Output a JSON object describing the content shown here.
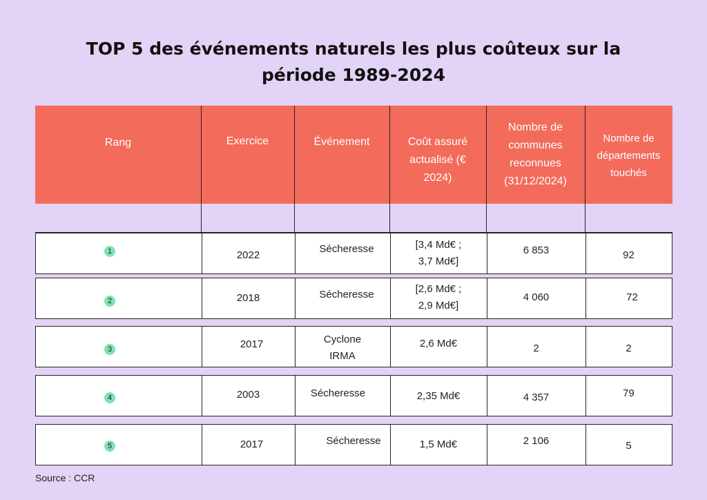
{
  "title": {
    "line1": "TOP 5 des événements naturels les plus coûteux sur la",
    "line2": "période 1989-2024"
  },
  "table": {
    "headers": {
      "rang": "Rang",
      "exercice": "Exercice",
      "evenement": "Événement",
      "cout_l1": "Coût assuré",
      "cout_l2": "actualisé (€",
      "cout_l3": "2024)",
      "communes_l1": "Nombre de",
      "communes_l2": "communes",
      "communes_l3": "reconnues",
      "communes_l4": "(31/12/2024)",
      "dept_l1": "Nombre de",
      "dept_l2": "départements",
      "dept_l3": "touchés"
    },
    "rows": [
      {
        "rang": "1",
        "exercice": "2022",
        "evenement_l1": "Sécheresse",
        "evenement_l2": "",
        "cout_l1": "[3,4 Md€ ;",
        "cout_l2": "3,7 Md€]",
        "communes": "6 853",
        "departements": "92"
      },
      {
        "rang": "2",
        "exercice": "2018",
        "evenement_l1": "Sécheresse",
        "evenement_l2": "",
        "cout_l1": "[2,6 Md€ ;",
        "cout_l2": "2,9 Md€]",
        "communes": "4 060",
        "departements": "72"
      },
      {
        "rang": "3",
        "exercice": "2017",
        "evenement_l1": "Cyclone",
        "evenement_l2": "IRMA",
        "cout_l1": "2,6 Md€",
        "cout_l2": "",
        "communes": "2",
        "departements": "2"
      },
      {
        "rang": "4",
        "exercice": "2003",
        "evenement_l1": "Sécheresse",
        "evenement_l2": "",
        "cout_l1": "2,35 Md€",
        "cout_l2": "",
        "communes": "4 357",
        "departements": "79"
      },
      {
        "rang": "5",
        "exercice": "2017",
        "evenement_l1": "Sécheresse",
        "evenement_l2": "",
        "cout_l1": "1,5 Md€",
        "cout_l2": "",
        "communes": "2 106",
        "departements": "5"
      }
    ]
  },
  "source": "Source : CCR",
  "colors": {
    "background": "#e3d3f6",
    "header": "#f26b5b",
    "rank_badge": "#7de3b2"
  }
}
